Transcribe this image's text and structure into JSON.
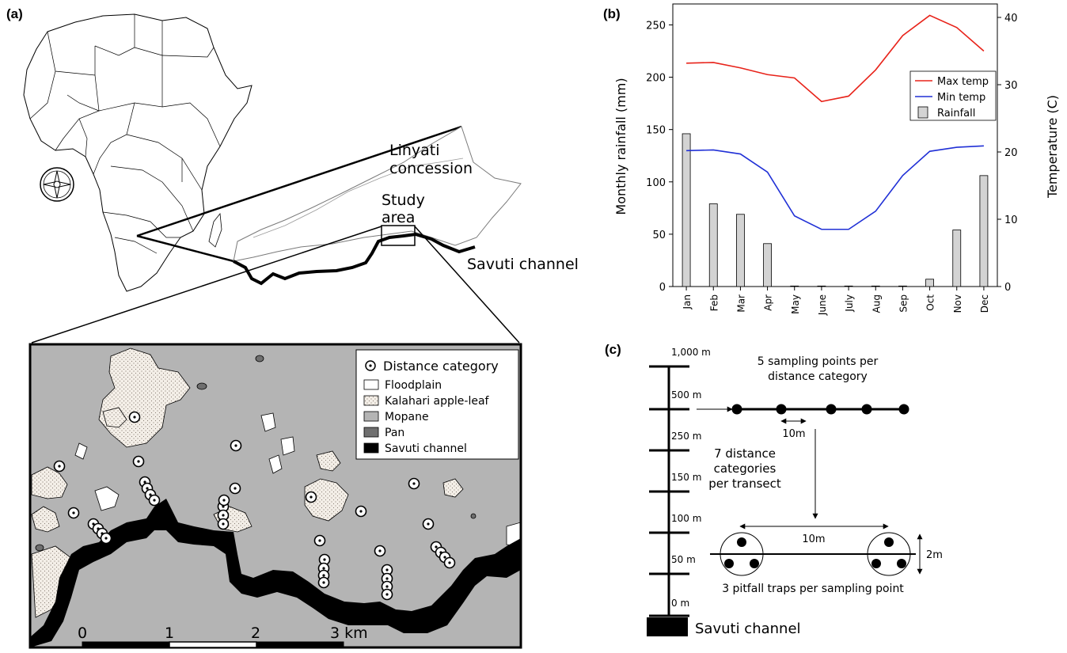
{
  "panels": {
    "a": "(a)",
    "b": "(b)",
    "c": "(c)"
  },
  "map": {
    "linyati_line1": "Linyati",
    "linyati_line2": "concession",
    "study_line1": "Study",
    "study_line2": "area",
    "savuti_label": "Savuti channel",
    "legend": {
      "distance": "Distance category",
      "floodplain": "Floodplain",
      "kalahari": "Kalahari apple-leaf",
      "mopane": "Mopane",
      "pan": "Pan",
      "savuti": "Savuti channel"
    },
    "scale": {
      "t0": "0",
      "t1": "1",
      "t2": "2",
      "t3": "3 km"
    },
    "colors": {
      "mopane": "#b4b4b4",
      "pan": "#6f6f6f",
      "kalahari": "#f4efe8",
      "channel": "#000000"
    }
  },
  "chart_data": {
    "type": "bar",
    "categories": [
      "Jan",
      "Feb",
      "Mar",
      "Apr",
      "May",
      "June",
      "July",
      "Aug",
      "Sep",
      "Oct",
      "Nov",
      "Dec"
    ],
    "series": [
      {
        "name": "Rainfall",
        "axis": "left",
        "type": "bar",
        "color": "#d3d3d3",
        "values": [
          146,
          79,
          69,
          41,
          0.5,
          0.5,
          0.5,
          0.5,
          0.5,
          7,
          54,
          106
        ]
      },
      {
        "name": "Max temp",
        "axis": "right",
        "type": "line",
        "color": "#e8231a",
        "values": [
          33.2,
          33.3,
          32.5,
          31.5,
          31.0,
          27.5,
          28.3,
          32.2,
          37.3,
          40.3,
          38.5,
          35.0
        ]
      },
      {
        "name": "Min temp",
        "axis": "right",
        "type": "line",
        "color": "#2030d6",
        "values": [
          20.2,
          20.3,
          19.7,
          17.0,
          10.5,
          8.5,
          8.5,
          11.2,
          16.5,
          20.1,
          20.7,
          20.9
        ]
      }
    ],
    "ylabel": "Monthly rainfall (mm)",
    "y2label": "Temperature (C)",
    "ylim": [
      0,
      270
    ],
    "y2lim": [
      0,
      42
    ],
    "yticks": [
      "0",
      "50",
      "100",
      "150",
      "200",
      "250"
    ],
    "y2ticks": [
      "0",
      "10",
      "20",
      "30",
      "40"
    ],
    "legend_position": "top-right"
  },
  "diagram": {
    "distances": [
      "1,000 m",
      "500 m",
      "250 m",
      "150 m",
      "100 m",
      "50 m",
      "0 m"
    ],
    "sampling_line1": "5 sampling points per",
    "sampling_line2": "distance category",
    "spacing_label": "10m",
    "categories_line1": "7 distance",
    "categories_line2": "categories",
    "categories_line3": "per transect",
    "spacing_label2": "10m",
    "width_label": "2m",
    "pitfall_label": "3 pitfall traps per sampling point",
    "channel_label": "Savuti channel"
  }
}
